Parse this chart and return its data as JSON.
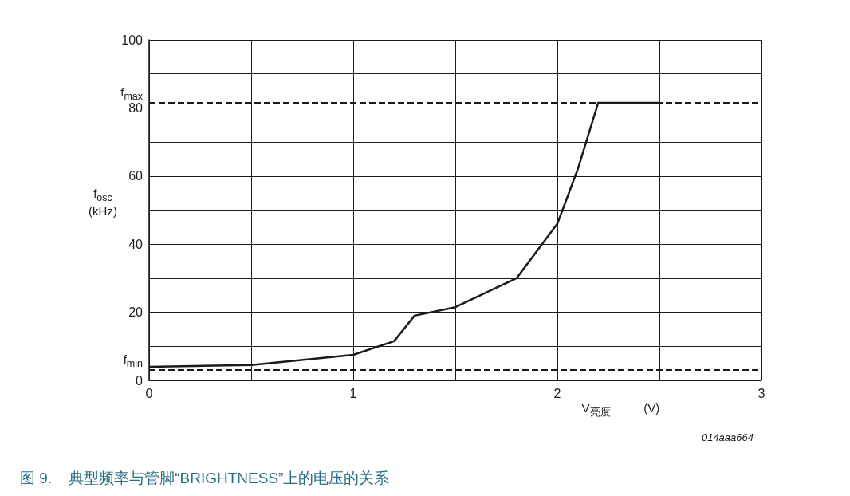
{
  "chart_data": {
    "type": "line",
    "title": "图 9.    典型频率与管脚“BRIGHTNESS”上的电压的关系",
    "xlabel": "V$_{亮度}$          (V)",
    "ylabel": "f$_{osc}$\n(kHz)",
    "annotations": [
      "014aaa664"
    ],
    "x": [
      0,
      0.5,
      1,
      1.2,
      1.3,
      1.5,
      1.8,
      2,
      2.1,
      2.2,
      2.5
    ],
    "series": [
      {
        "color": "#1a1a1a",
        "values": [
          4,
          4.5,
          7.5,
          11.5,
          19,
          21.5,
          30,
          46,
          62,
          81.5,
          81.5
        ]
      }
    ],
    "xlim": [
      0,
      3
    ],
    "xticks": [
      0,
      {
        "value": 0.5,
        "label": null
      },
      1,
      {
        "value": 1.5,
        "label": null
      },
      2,
      {
        "value": 2.5,
        "label": null
      },
      3
    ],
    "ylim": [
      0,
      100
    ],
    "yticks": [
      0,
      {
        "value": 10,
        "label": null
      },
      20,
      {
        "value": 30,
        "label": null
      },
      40,
      {
        "value": 50,
        "label": null
      },
      60,
      {
        "value": 70,
        "label": null
      },
      80,
      {
        "value": 90,
        "label": null
      },
      100
    ],
    "ref_lines": [
      {
        "axis": "y",
        "value": 81.5,
        "label": "f$_{max}$",
        "color": "#1a1a1a",
        "line_style": "dashed"
      },
      {
        "axis": "y",
        "value": 3,
        "label": "f$_{min}$",
        "color": "#1a1a1a",
        "line_style": "dashed"
      }
    ],
    "grid": true,
    "marker": "none",
    "line_style": "solid"
  }
}
